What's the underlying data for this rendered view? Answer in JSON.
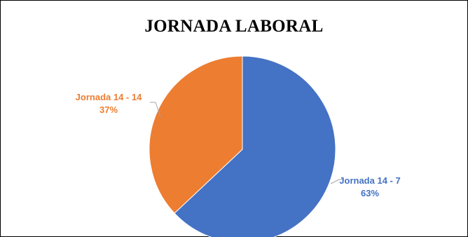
{
  "chart_data": {
    "type": "pie",
    "title": "JORNADA LABORAL",
    "slices": [
      {
        "label": "Jornada 14 - 7",
        "value": 63,
        "display": "63%",
        "color": "#4472C4"
      },
      {
        "label": "Jornada 14 - 14",
        "value": 37,
        "display": "37%",
        "color": "#ED7D31"
      }
    ],
    "legend": "none",
    "data_labels": "outside-with-leader-lines"
  }
}
